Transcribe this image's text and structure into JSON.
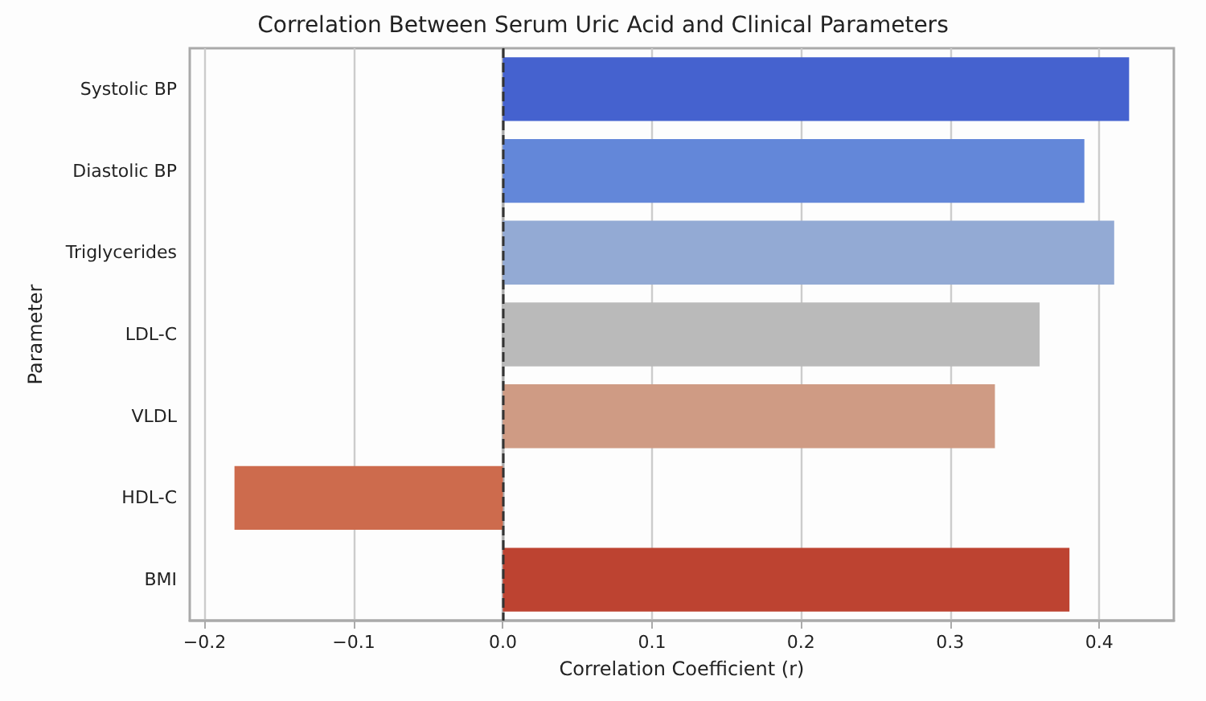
{
  "chart_data": {
    "type": "bar",
    "orientation": "horizontal",
    "title": "Correlation Between Serum Uric Acid and Clinical Parameters",
    "xlabel": "Correlation Coefficient (r)",
    "ylabel": "Parameter",
    "categories": [
      "Systolic BP",
      "Diastolic BP",
      "Triglycerides",
      "LDL-C",
      "VLDL",
      "HDL-C",
      "BMI"
    ],
    "values": [
      0.42,
      0.39,
      0.41,
      0.36,
      0.33,
      -0.18,
      0.38
    ],
    "colors": [
      "#4562cf",
      "#6387d9",
      "#93aad4",
      "#bababa",
      "#cf9b84",
      "#cd6b4d",
      "#bd4331"
    ],
    "xlim": [
      -0.21,
      0.45
    ],
    "xticks": [
      {
        "value": -0.2,
        "label": "−0.2"
      },
      {
        "value": -0.1,
        "label": "−0.1"
      },
      {
        "value": 0,
        "label": "0.0"
      },
      {
        "value": 0.1,
        "label": "0.1"
      },
      {
        "value": 0.2,
        "label": "0.2"
      },
      {
        "value": 0.3,
        "label": "0.3"
      },
      {
        "value": 0.4,
        "label": "0.4"
      }
    ],
    "grid": "x",
    "ref_lines": [
      {
        "axis": "x",
        "value": 0,
        "color": "#333333",
        "line_style": "dashed"
      }
    ]
  }
}
